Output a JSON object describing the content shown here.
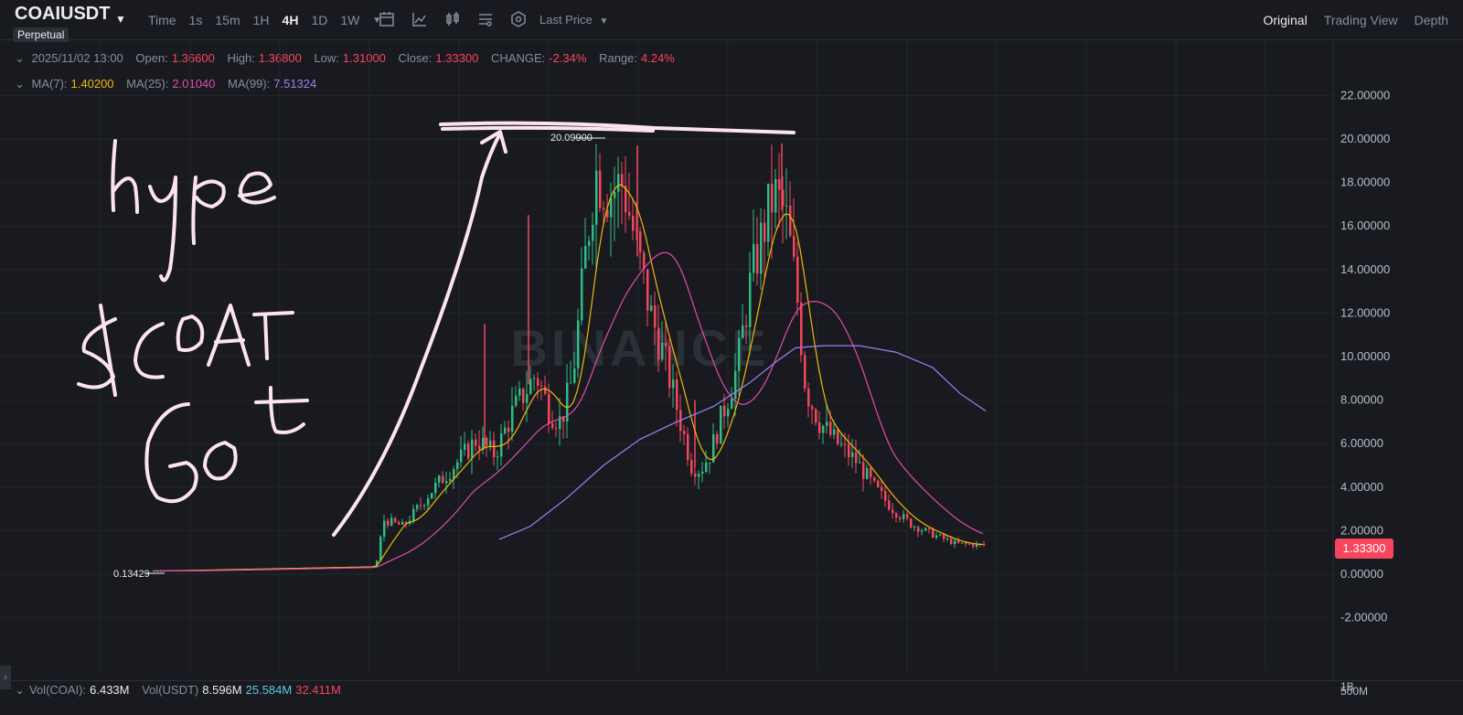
{
  "header": {
    "symbol": "COAIUSDT",
    "contract_type": "Perpetual",
    "intervals": [
      "Time",
      "1s",
      "15m",
      "1H",
      "4H",
      "1D",
      "1W"
    ],
    "active_interval": "4H",
    "price_type": "Last Price",
    "views": [
      "Original",
      "Trading View",
      "Depth"
    ],
    "active_view": "Original"
  },
  "ohlc": {
    "date": "2025/11/02 13:00",
    "open_label": "Open:",
    "open": "1.36600",
    "high_label": "High:",
    "high": "1.36800",
    "low_label": "Low:",
    "low": "1.31000",
    "close_label": "Close:",
    "close": "1.33300",
    "change_label": "CHANGE:",
    "change": "-2.34%",
    "range_label": "Range:",
    "range": "4.24%"
  },
  "ma": {
    "ma7_label": "MA(7):",
    "ma7": "1.40200",
    "ma25_label": "MA(25):",
    "ma25": "2.01040",
    "ma99_label": "MA(99):",
    "ma99": "7.51324"
  },
  "price_axis": [
    "22.00000",
    "20.00000",
    "18.00000",
    "16.00000",
    "14.00000",
    "12.00000",
    "10.00000",
    "8.00000",
    "6.00000",
    "4.00000",
    "2.00000",
    "0.00000",
    "-2.00000"
  ],
  "price_axis_values": [
    22,
    20,
    18,
    16,
    14,
    12,
    10,
    8,
    6,
    4,
    2,
    0,
    -2
  ],
  "current_price": "1.33300",
  "high_marker": "20.09900",
  "low_marker": "0.13429",
  "watermark": "BINANCE",
  "annotations": {
    "line1": "hype",
    "line2": "$COAI",
    "line3": "Got"
  },
  "volume": {
    "label1": "Vol(COAI):",
    "value1": "6.433M",
    "label2": "Vol(USDT)",
    "value2": "8.596M",
    "value3": "25.584M",
    "value4": "32.411M",
    "axis_top": "1B",
    "axis_bottom": "500M"
  },
  "colors": {
    "background": "#181a20",
    "up": "#2ebd85",
    "down": "#f6465d",
    "ma7": "#f0b90b",
    "ma25": "#e14dac",
    "ma99": "#9c82f2",
    "annotation": "#fde4ec"
  }
}
